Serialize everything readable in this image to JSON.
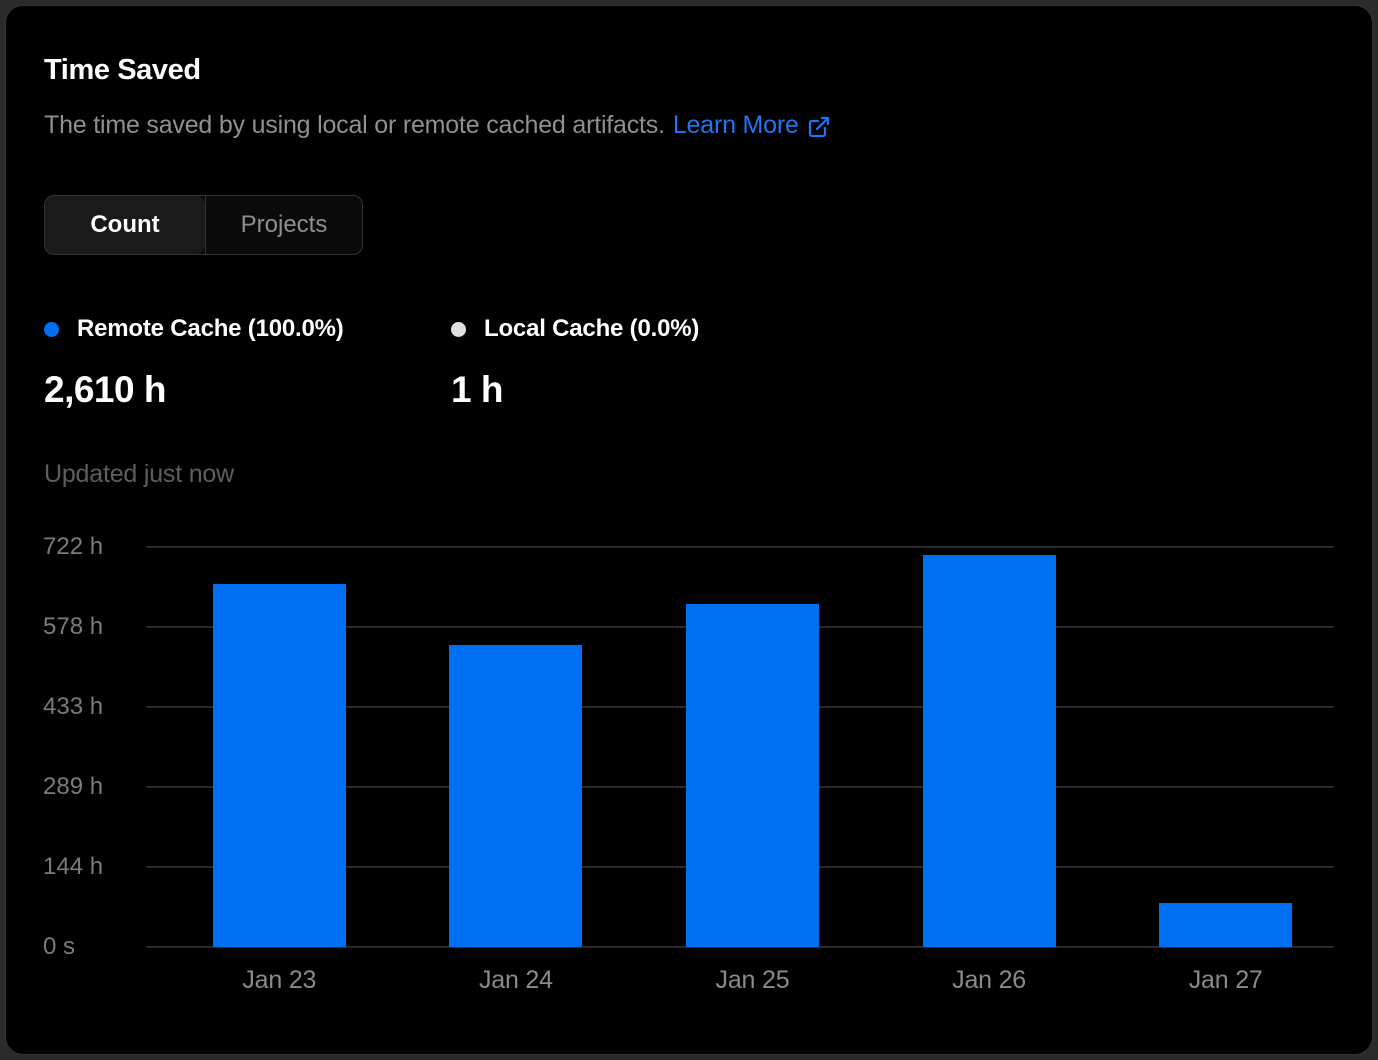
{
  "card": {
    "title": "Time Saved",
    "subtitle": "The time saved by using local or remote cached artifacts.",
    "learn_more_label": "Learn More",
    "updated_text": "Updated just now",
    "tabs": [
      {
        "label": "Count",
        "active": true
      },
      {
        "label": "Projects",
        "active": false
      }
    ],
    "legend": [
      {
        "label": "Remote Cache (100.0%)",
        "value": "2,610 h",
        "dot_color": "#0070f3"
      },
      {
        "label": "Local Cache (0.0%)",
        "value": "1 h",
        "dot_color": "#e0e0e0"
      }
    ]
  },
  "colors": {
    "card_background": "#000000",
    "page_background": "#2b2b2b",
    "card_border": "#333333",
    "accent_blue": "#0070f3",
    "link_blue": "#1f76f0",
    "gridline": "#282828",
    "muted_text": "#8a8a8a"
  },
  "chart_data": {
    "type": "bar",
    "title": "Time Saved",
    "series_name": "Remote Cache",
    "categories": [
      "Jan 23",
      "Jan 24",
      "Jan 25",
      "Jan 26",
      "Jan 27"
    ],
    "values": [
      656,
      546,
      620,
      708,
      80
    ],
    "unit": "h",
    "xlabel": "",
    "ylabel": "",
    "ylim": [
      0,
      722
    ],
    "y_ticks": [
      {
        "label": "722 h",
        "value": 722
      },
      {
        "label": "578 h",
        "value": 578
      },
      {
        "label": "433 h",
        "value": 433
      },
      {
        "label": "289 h",
        "value": 289
      },
      {
        "label": "144 h",
        "value": 144
      },
      {
        "label": "0 s",
        "value": 0
      }
    ],
    "bar_color": "#0070f3",
    "grid": true,
    "legend_position": "top"
  }
}
